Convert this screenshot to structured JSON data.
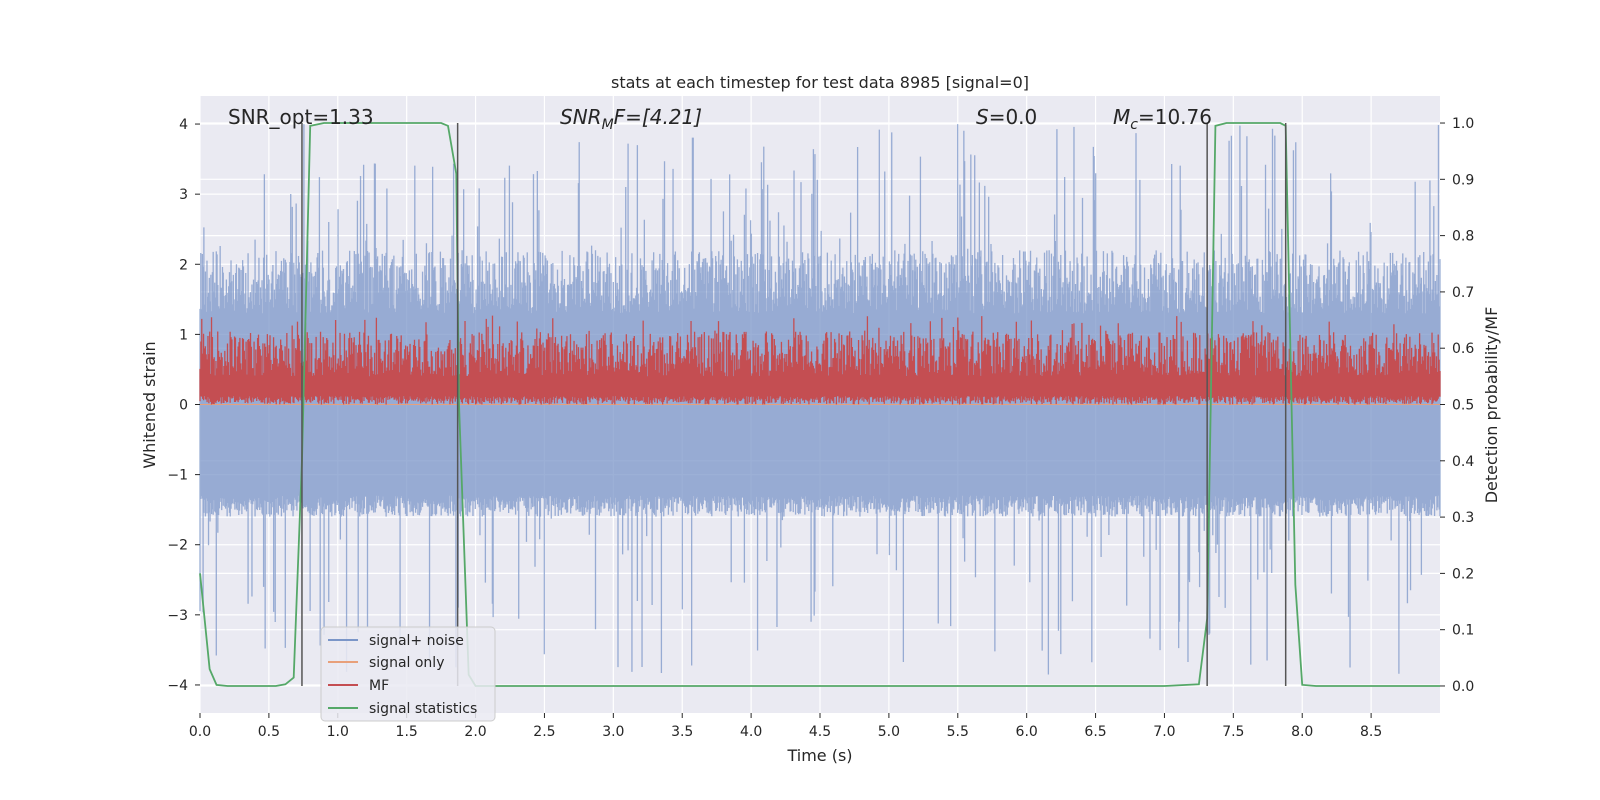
{
  "chart_data": {
    "type": "line",
    "title": "stats at each timestep for test data 8985 [signal=0]",
    "xlabel": "Time (s)",
    "ylabel": "Whitened strain",
    "ylabel_right": "Detection probability/MF",
    "xlim": [
      0.0,
      9.0
    ],
    "ylim": [
      -4.4,
      4.4
    ],
    "ylim_right": [
      -0.048,
      1.048
    ],
    "x_ticks": [
      "0.0",
      "0.5",
      "1.0",
      "1.5",
      "2.0",
      "2.5",
      "3.0",
      "3.5",
      "4.0",
      "4.5",
      "5.0",
      "5.5",
      "6.0",
      "6.5",
      "7.0",
      "7.5",
      "8.0",
      "8.5"
    ],
    "x_tick_values": [
      0.0,
      0.5,
      1.0,
      1.5,
      2.0,
      2.5,
      3.0,
      3.5,
      4.0,
      4.5,
      5.0,
      5.5,
      6.0,
      6.5,
      7.0,
      7.5,
      8.0,
      8.5
    ],
    "y_ticks": [
      "4",
      "3",
      "2",
      "1",
      "0",
      "−1",
      "−2",
      "−3",
      "−4"
    ],
    "y_tick_values": [
      4,
      3,
      2,
      1,
      0,
      -1,
      -2,
      -3,
      -4
    ],
    "y_right_ticks": [
      "1.0",
      "0.9",
      "0.8",
      "0.7",
      "0.6",
      "0.5",
      "0.4",
      "0.3",
      "0.2",
      "0.1",
      "0.0"
    ],
    "y_right_tick_values": [
      1.0,
      0.9,
      0.8,
      0.7,
      0.6,
      0.5,
      0.4,
      0.3,
      0.2,
      0.1,
      0.0
    ],
    "grid": true,
    "legend_position": "bottom-left",
    "annotations": {
      "snr_opt": "SNR_opt=1.33",
      "snr_mf_main": "SNR",
      "snr_mf_sub": "M",
      "snr_mf_rest": "F=[4.21]",
      "s_main": "S",
      "s_rest": "=0.0",
      "mc_main": "M",
      "mc_sub": "c",
      "mc_rest": "=10.76"
    },
    "vertical_lines": [
      0.74,
      1.87,
      7.31,
      7.88
    ],
    "series": [
      {
        "name": "signal+ noise",
        "color": "#7b96c8",
        "opacity": 0.7,
        "axis": "left",
        "amplitude_envelope": {
          "typical_max": 2.2,
          "peak_max": 4.0,
          "typical_min": -1.6,
          "peak_min": -3.9
        }
      },
      {
        "name": "signal only",
        "color": "#e8a07a",
        "axis": "left",
        "values": "flat at 0"
      },
      {
        "name": "MF",
        "color": "#c44e52",
        "axis": "right",
        "band": [
          0.5,
          0.63
        ]
      },
      {
        "name": "signal statistics",
        "color": "#55a868",
        "axis": "right",
        "x": [
          0.0,
          0.07,
          0.12,
          0.2,
          0.4,
          0.55,
          0.62,
          0.68,
          0.74,
          0.8,
          0.9,
          1.2,
          1.5,
          1.75,
          1.8,
          1.86,
          1.88,
          1.95,
          2.0,
          2.5,
          3.0,
          4.0,
          5.0,
          6.0,
          7.0,
          7.25,
          7.31,
          7.37,
          7.45,
          7.7,
          7.84,
          7.88,
          7.95,
          8.0,
          8.1,
          8.5,
          9.0
        ],
        "y": [
          0.2,
          0.03,
          0.002,
          0.0,
          0.0,
          0.0,
          0.003,
          0.015,
          0.4,
          0.995,
          1.0,
          1.0,
          1.0,
          1.0,
          0.995,
          0.91,
          0.5,
          0.02,
          0.0,
          0.0,
          0.0,
          0.0,
          0.0,
          0.0,
          0.0,
          0.003,
          0.12,
          0.995,
          1.0,
          1.0,
          1.0,
          0.995,
          0.18,
          0.002,
          0.0,
          0.0,
          0.0
        ]
      }
    ]
  }
}
